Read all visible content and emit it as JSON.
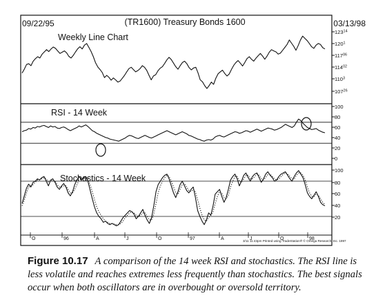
{
  "figure": {
    "date_start": "09/22/95",
    "header_title": "(TR1600) Treasury Bonds 1600",
    "date_end": "03/13/98",
    "footer_note": "3/11 11:43pm Printed using TradeStation® © Omega Research, Inc. 1997"
  },
  "caption": {
    "label": "Figure 10.17",
    "text": "A comparison of the 14 week RSI and stochastics. The RSI line is less volatile and reaches extremes less frequently than stochastics. The best signals occur when both oscillators are in overbought or oversold territory."
  },
  "chart_data": [
    {
      "type": "line",
      "title": "Weekly Line Chart",
      "yticks": [
        "123^14",
        "120^1",
        "117^06",
        "114^02",
        "110^3",
        "107^26"
      ],
      "ylim": [
        104.5,
        126
      ],
      "series": [
        {
          "values": [
            112.3,
            113.5,
            115.0,
            115.2,
            114.6,
            116.0,
            116.8,
            117.4,
            117.0,
            118.2,
            118.9,
            119.6,
            119.0,
            119.8,
            120.4,
            120.0,
            119.2,
            118.4,
            118.8,
            119.2,
            118.6,
            117.5,
            117.0,
            117.8,
            118.9,
            119.9,
            120.5,
            119.8,
            121.0,
            121.5,
            120.3,
            119.0,
            117.4,
            115.5,
            114.2,
            113.4,
            112.5,
            110.9,
            111.6,
            111.0,
            110.1,
            110.8,
            110.2,
            109.5,
            109.8,
            110.7,
            111.6,
            112.7,
            113.7,
            114.1,
            113.4,
            112.7,
            113.1,
            113.7,
            114.6,
            114.1,
            113.1,
            111.6,
            110.2,
            111.4,
            111.8,
            113.0,
            113.8,
            114.3,
            115.3,
            116.4,
            117.2,
            116.5,
            115.4,
            114.3,
            113.5,
            114.6,
            115.6,
            116.0,
            115.2,
            114.0,
            113.3,
            113.9,
            114.1,
            112.4,
            110.2,
            109.6,
            108.4,
            107.5,
            108.4,
            109.5,
            108.8,
            110.7,
            112.1,
            112.7,
            113.2,
            112.2,
            111.4,
            112.0,
            113.4,
            114.7,
            115.6,
            116.2,
            115.4,
            114.5,
            115.6,
            116.8,
            117.4,
            116.6,
            116.0,
            116.9,
            117.7,
            118.4,
            117.6,
            116.6,
            117.6,
            118.8,
            119.6,
            119.2,
            118.9,
            118.2,
            118.5,
            119.4,
            120.3,
            121.2,
            122.6,
            121.6,
            120.6,
            119.4,
            120.9,
            122.6,
            123.8,
            123.1,
            122.4,
            121.5,
            120.5,
            120.0,
            121.0,
            121.5,
            121.2,
            120.2,
            119.8
          ]
        }
      ]
    },
    {
      "type": "line",
      "title": "RSI - 14 Week",
      "yticks": [
        "100",
        "80",
        "60",
        "40",
        "20",
        "0"
      ],
      "ylim": [
        0,
        100
      ],
      "reference_lines": [
        70,
        30
      ],
      "annotations": [
        "circled low",
        "circled high"
      ],
      "series": [
        {
          "values": [
            52,
            54,
            55,
            58,
            57,
            60,
            59,
            62,
            61,
            63,
            64,
            62,
            60,
            63,
            61,
            62,
            59,
            58,
            60,
            61,
            59,
            56,
            54,
            56,
            58,
            60,
            63,
            61,
            63,
            65,
            62,
            58,
            54,
            52,
            49,
            47,
            45,
            43,
            41,
            40,
            38,
            37,
            36,
            35,
            34,
            36,
            38,
            40,
            43,
            45,
            44,
            42,
            40,
            39,
            41,
            43,
            45,
            43,
            41,
            40,
            42,
            44,
            46,
            48,
            50,
            52,
            54,
            52,
            50,
            48,
            46,
            48,
            50,
            52,
            50,
            48,
            45,
            44,
            42,
            40,
            38,
            37,
            35,
            34,
            36,
            37,
            36,
            38,
            42,
            44,
            45,
            43,
            42,
            44,
            46,
            48,
            50,
            52,
            51,
            49,
            50,
            52,
            54,
            53,
            51,
            53,
            55,
            57,
            55,
            53,
            55,
            57,
            59,
            58,
            57,
            55,
            56,
            58,
            60,
            63,
            66,
            64,
            62,
            60,
            63,
            70,
            76,
            73,
            68,
            64,
            60,
            58,
            56,
            57,
            58,
            55,
            53,
            51,
            50
          ]
        }
      ]
    },
    {
      "type": "line",
      "title": "Stochastics - 14 Week",
      "yticks": [
        "100",
        "80",
        "60",
        "40",
        "20"
      ],
      "ylim": [
        0,
        100
      ],
      "reference_lines": [
        80,
        20
      ],
      "x_tick_labels": [
        "O",
        "96",
        "A",
        "J",
        "O",
        "97",
        "A",
        "J",
        "O",
        "98"
      ],
      "series": [
        {
          "values": [
            42,
            55,
            68,
            75,
            70,
            78,
            80,
            84,
            82,
            86,
            88,
            80,
            72,
            82,
            84,
            78,
            70,
            66,
            72,
            76,
            70,
            60,
            55,
            62,
            74,
            82,
            88,
            82,
            86,
            88,
            80,
            65,
            50,
            36,
            26,
            20,
            16,
            10,
            12,
            8,
            6,
            8,
            6,
            4,
            6,
            12,
            18,
            22,
            26,
            30,
            28,
            24,
            16,
            20,
            26,
            32,
            22,
            14,
            8,
            18,
            38,
            62,
            74,
            80,
            86,
            90,
            92,
            84,
            72,
            60,
            52,
            62,
            74,
            80,
            72,
            64,
            60,
            66,
            70,
            52,
            30,
            20,
            12,
            6,
            14,
            26,
            22,
            38,
            58,
            62,
            66,
            54,
            44,
            52,
            66,
            82,
            88,
            92,
            84,
            72,
            80,
            90,
            94,
            86,
            80,
            88,
            92,
            94,
            86,
            78,
            84,
            92,
            96,
            90,
            86,
            80,
            82,
            88,
            92,
            94,
            96,
            90,
            84,
            80,
            88,
            94,
            98,
            92,
            86,
            74,
            60,
            54,
            50,
            56,
            62,
            54,
            44,
            40,
            38
          ]
        },
        {
          "values": [
            38,
            48,
            60,
            70,
            72,
            74,
            78,
            82,
            82,
            84,
            86,
            84,
            78,
            80,
            82,
            80,
            74,
            70,
            70,
            72,
            72,
            66,
            60,
            60,
            66,
            74,
            82,
            84,
            86,
            87,
            84,
            74,
            62,
            48,
            36,
            28,
            22,
            16,
            12,
            10,
            8,
            8,
            7,
            6,
            6,
            8,
            12,
            18,
            22,
            26,
            28,
            26,
            22,
            20,
            22,
            26,
            26,
            20,
            14,
            14,
            24,
            42,
            60,
            72,
            80,
            86,
            90,
            88,
            80,
            70,
            60,
            58,
            66,
            74,
            76,
            70,
            64,
            62,
            66,
            62,
            48,
            34,
            22,
            14,
            12,
            18,
            22,
            28,
            42,
            54,
            62,
            60,
            52,
            50,
            56,
            70,
            80,
            88,
            88,
            80,
            78,
            84,
            90,
            90,
            84,
            84,
            88,
            92,
            90,
            84,
            82,
            86,
            92,
            92,
            88,
            84,
            82,
            84,
            88,
            92,
            94,
            92,
            88,
            84,
            84,
            90,
            94,
            94,
            90,
            82,
            70,
            60,
            54,
            54,
            58,
            56,
            50,
            44,
            40
          ]
        }
      ]
    }
  ]
}
